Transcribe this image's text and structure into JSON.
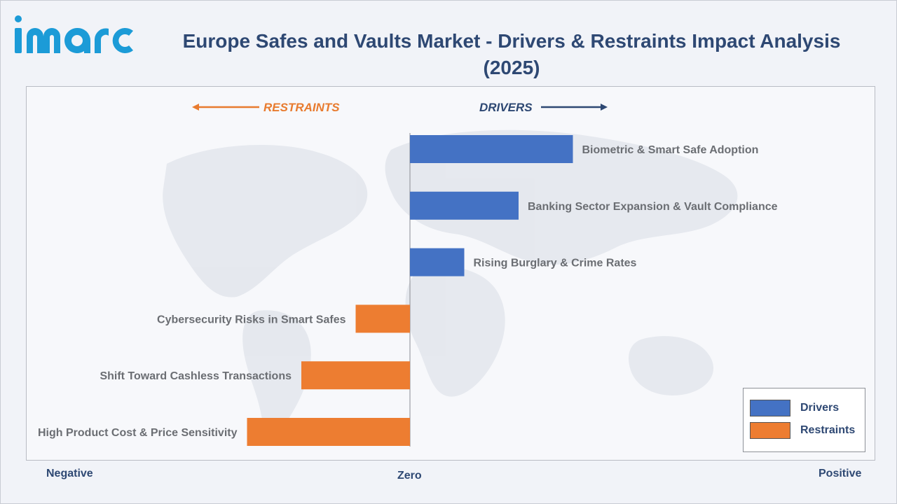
{
  "brand": {
    "logo_text": "imarc",
    "color": "#1c9bd7"
  },
  "title": "Europe Safes and Vaults Market - Drivers & Restraints Impact Analysis (2025)",
  "headers": {
    "restraints": "RESTRAINTS",
    "drivers": "DRIVERS"
  },
  "axis": {
    "negative": "Negative",
    "zero": "Zero",
    "positive": "Positive"
  },
  "legend": {
    "items": [
      {
        "label": "Drivers",
        "color": "#4472c4"
      },
      {
        "label": "Restraints",
        "color": "#ed7d31"
      }
    ]
  },
  "chart_data": {
    "type": "bar",
    "orientation": "horizontal-diverging",
    "title": "Europe Safes and Vaults Market - Drivers & Restraints Impact Analysis (2025)",
    "xlabel_left": "Negative",
    "xlabel_center": "Zero",
    "xlabel_right": "Positive",
    "grid": false,
    "legend_position": "bottom-right",
    "xlim": [
      -3,
      6.5
    ],
    "categories": [
      "Biometric & Smart Safe Adoption",
      "Banking Sector Expansion & Vault Compliance",
      "Rising Burglary & Crime Rates",
      "Cybersecurity Risks in Smart Safes",
      "Shift Toward Cashless Transactions",
      "High Product Cost & Price Sensitivity"
    ],
    "series": [
      {
        "name": "Drivers",
        "color": "#4472c4",
        "values": [
          3.0,
          2.0,
          1.0,
          null,
          null,
          null
        ]
      },
      {
        "name": "Restraints",
        "color": "#ed7d31",
        "values": [
          null,
          null,
          null,
          -1.0,
          -2.0,
          -3.0
        ]
      }
    ]
  }
}
